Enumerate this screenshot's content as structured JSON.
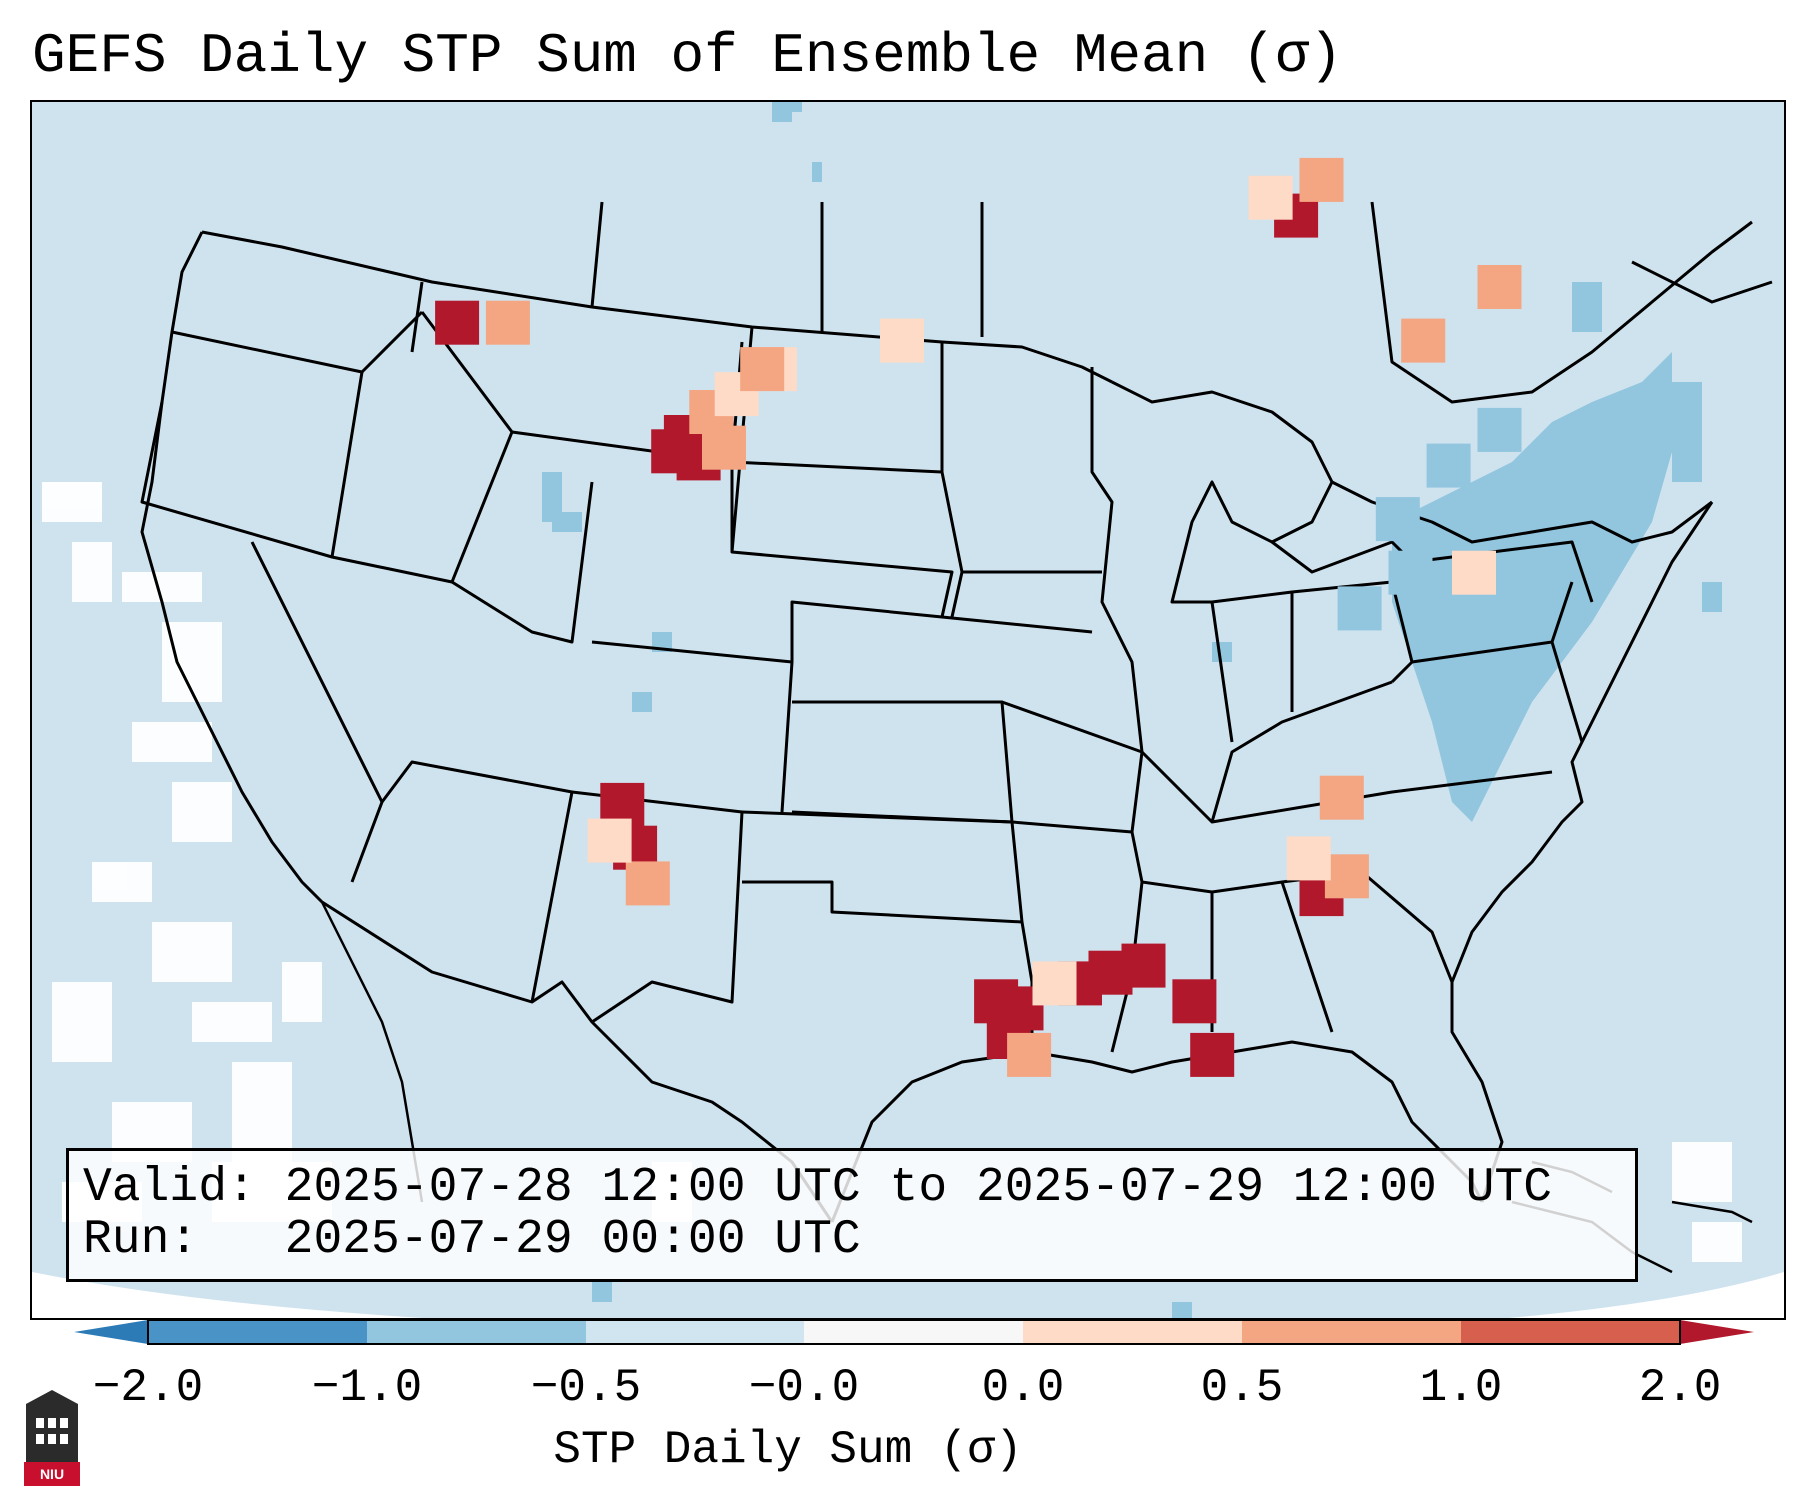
{
  "title": "GEFS Daily STP Sum of Ensemble Mean (σ)",
  "info": {
    "valid_line": "Valid: 2025-07-28 12:00 UTC to 2025-07-29 12:00 UTC",
    "run_line": "Run:   2025-07-29 00:00 UTC"
  },
  "colorbar": {
    "label": "STP Daily Sum (σ)",
    "ticks": [
      "−2.0",
      "−1.0",
      "−0.5",
      "−0.0",
      "0.0",
      "0.5",
      "1.0",
      "2.0"
    ],
    "colors": [
      "#2c7bb6",
      "#4a93c6",
      "#92c5de",
      "#d1e5f0",
      "#f7f7f7",
      "#fddbc7",
      "#f4a582",
      "#d6604d",
      "#b2182b"
    ]
  },
  "logo": {
    "text": "NIU"
  },
  "map_background": "#cfe3ef",
  "chart_data": {
    "type": "heatmap",
    "title": "GEFS Daily STP Sum of Ensemble Mean (σ)",
    "variable": "STP Daily Sum (σ)",
    "levels": [
      -2.0,
      -1.0,
      -0.5,
      0.0,
      0.5,
      1.0,
      2.0
    ],
    "cells": [
      {
        "lon": -104.0,
        "lat": 44.3,
        "v": 2.0
      },
      {
        "lon": -103.0,
        "lat": 44.3,
        "v": 2.0
      },
      {
        "lon": -103.5,
        "lat": 43.7,
        "v": 2.0
      },
      {
        "lon": -102.5,
        "lat": 44.0,
        "v": 1.5
      },
      {
        "lon": -104.5,
        "lat": 43.9,
        "v": 2.0
      },
      {
        "lon": -103.0,
        "lat": 45.0,
        "v": 1.2
      },
      {
        "lon": -102.0,
        "lat": 45.5,
        "v": 0.8
      },
      {
        "lon": -100.5,
        "lat": 46.2,
        "v": 0.6
      },
      {
        "lon": -106.5,
        "lat": 34.0,
        "v": 2.0
      },
      {
        "lon": -106.0,
        "lat": 32.8,
        "v": 2.0
      },
      {
        "lon": -105.5,
        "lat": 31.8,
        "v": 1.5
      },
      {
        "lon": -107.0,
        "lat": 33.0,
        "v": 0.7
      },
      {
        "lon": -91.8,
        "lat": 28.5,
        "v": 2.0
      },
      {
        "lon": -90.8,
        "lat": 28.3,
        "v": 2.0
      },
      {
        "lon": -91.3,
        "lat": 27.5,
        "v": 2.0
      },
      {
        "lon": -90.5,
        "lat": 27.0,
        "v": 1.3
      },
      {
        "lon": -88.5,
        "lat": 29.0,
        "v": 2.0
      },
      {
        "lon": -87.3,
        "lat": 29.3,
        "v": 2.0
      },
      {
        "lon": -86.0,
        "lat": 29.5,
        "v": 2.0
      },
      {
        "lon": -84.0,
        "lat": 28.5,
        "v": 2.0
      },
      {
        "lon": -83.3,
        "lat": 27.0,
        "v": 2.0
      },
      {
        "lon": -89.5,
        "lat": 29.0,
        "v": 0.7
      },
      {
        "lon": -79.0,
        "lat": 31.5,
        "v": 2.0
      },
      {
        "lon": -78.0,
        "lat": 32.0,
        "v": 1.4
      },
      {
        "lon": -79.5,
        "lat": 32.5,
        "v": 0.7
      },
      {
        "lon": -78.2,
        "lat": 34.2,
        "v": 1.5
      },
      {
        "lon": -73.0,
        "lat": 40.5,
        "v": 0.8
      },
      {
        "lon": -80.0,
        "lat": 50.5,
        "v": 2.0
      },
      {
        "lon": -79.0,
        "lat": 51.5,
        "v": 1.3
      },
      {
        "lon": -81.0,
        "lat": 51.0,
        "v": 0.7
      },
      {
        "lon": -72.0,
        "lat": 48.5,
        "v": 1.3
      },
      {
        "lon": -75.0,
        "lat": 47.0,
        "v": 1.0
      },
      {
        "lon": -113.0,
        "lat": 47.5,
        "v": 2.0
      },
      {
        "lon": -111.0,
        "lat": 47.5,
        "v": 1.5
      },
      {
        "lon": -101.0,
        "lat": 46.2,
        "v": 1.4
      },
      {
        "lon": -95.5,
        "lat": 47.0,
        "v": 0.6
      },
      {
        "lon": -76.0,
        "lat": 42.0,
        "v": -0.7
      },
      {
        "lon": -74.0,
        "lat": 43.5,
        "v": -0.7
      },
      {
        "lon": -72.0,
        "lat": 44.5,
        "v": -0.7
      },
      {
        "lon": -75.5,
        "lat": 40.5,
        "v": -0.6
      },
      {
        "lon": -77.5,
        "lat": 39.5,
        "v": -0.6
      },
      {
        "lon": -130.0,
        "lat": 38.0,
        "v": 0.0
      },
      {
        "lon": -128.0,
        "lat": 33.0,
        "v": 0.0
      },
      {
        "lon": -125.0,
        "lat": 26.0,
        "v": 0.0
      }
    ]
  }
}
